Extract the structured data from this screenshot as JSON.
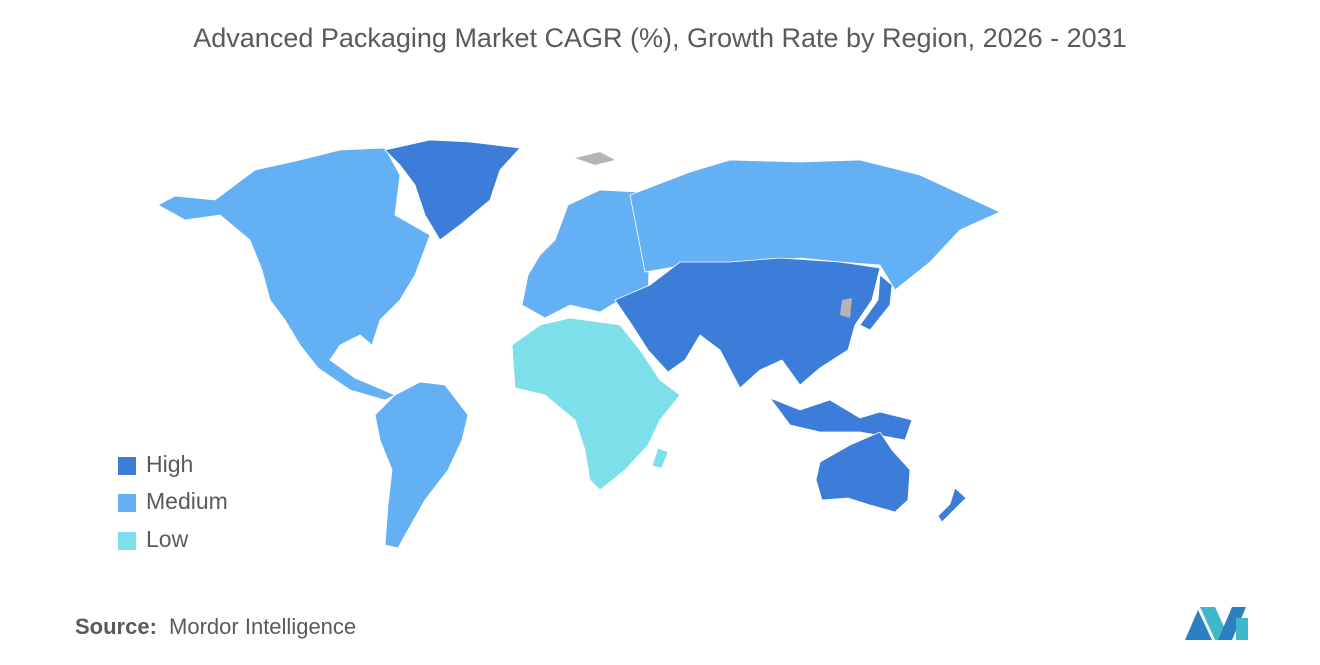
{
  "title": "Advanced Packaging Market CAGR (%), Growth Rate by Region, 2026 - 2031",
  "legend": [
    {
      "label": "High",
      "color": "#3b7dd8"
    },
    {
      "label": "Medium",
      "color": "#64b0f5"
    },
    {
      "label": "Low",
      "color": "#7ddfe9"
    }
  ],
  "source": {
    "label": "Source:",
    "text": "Mordor Intelligence"
  }
}
